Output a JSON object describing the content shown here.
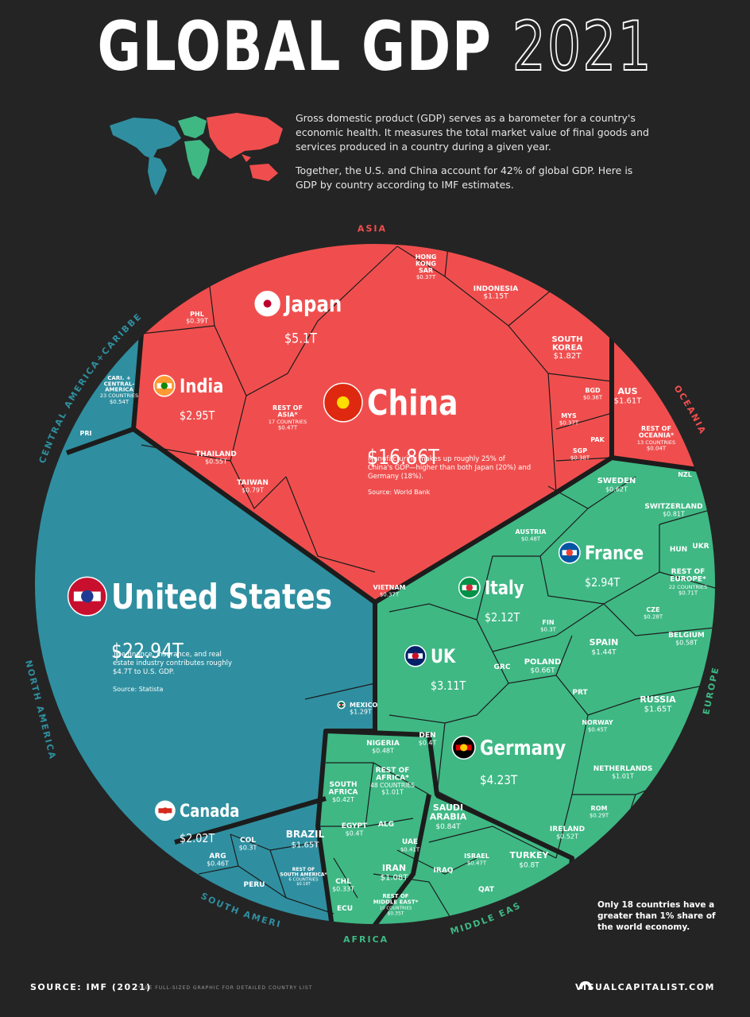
{
  "header": {
    "title_solid": "GLOBAL GDP",
    "title_outline": "2021",
    "intro_p1": "Gross domestic product (GDP) serves as a barometer for a country's economic health. It measures the total market value of final goods and services produced in a country during a given year.",
    "intro_p2": "Together, the U.S. and China account for 42% of global GDP. Here is GDP by country according to IMF estimates."
  },
  "colors": {
    "background": "#242424",
    "asia": "#f04e4e",
    "americas": "#2f8fa0",
    "europe": "#3fb884",
    "africa": "#3fb884",
    "middle_east": "#3fb884",
    "oceania": "#f04e4e",
    "border": "#1c1c1c"
  },
  "region_labels": {
    "asia": "ASIA",
    "oceania": "OCEANIA",
    "europe": "EUROPE",
    "middle_east": "MIDDLE EAST",
    "africa": "AFRICA",
    "south_america": "SOUTH AMERICA",
    "north_america": "NORTH AMERICA",
    "central_america": "CENTRAL AMERICA+CARIBBEAN"
  },
  "annotations": {
    "china": "Manufacturing makes up roughly 25% of China's GDP—higher than both Japan (20%) and Germany (18%).",
    "china_source": "Source: World Bank",
    "us": "The finance, insurance, and real estate industry contributes roughly $4.7T to U.S. GDP.",
    "us_source": "Source: Statista",
    "share_note": "Only 18 countries have a greater than 1% share of the world economy."
  },
  "footer": {
    "source": "SOURCE: IMF (2021)",
    "note": "*SEE FULL-SIZED GRAPHIC FOR DETAILED COUNTRY LIST",
    "brand": "VISUALCAPITALIST.COM"
  },
  "chart_data": {
    "type": "voronoi-treemap",
    "title": "GLOBAL GDP 2021",
    "unit": "USD trillions",
    "items": [
      {
        "label": "United States",
        "value": "$22.94T",
        "region": "North America",
        "flag": "us-flag-icon"
      },
      {
        "label": "Canada",
        "value": "$2.02T",
        "region": "North America",
        "flag": "canada-flag-icon"
      },
      {
        "label": "MEXICO",
        "value": "$1.29T",
        "region": "North America",
        "flag": "mexico-flag-icon"
      },
      {
        "label": "CARI. + CENTRAL- AMERICA",
        "sub": "23 COUNTRIES",
        "value": "$0.54T",
        "region": "Central America+Caribbean"
      },
      {
        "label": "PRI",
        "value": "",
        "region": "Central America+Caribbean"
      },
      {
        "label": "China",
        "value": "$16.86T",
        "region": "Asia",
        "flag": "china-flag-icon"
      },
      {
        "label": "Japan",
        "value": "$5.1T",
        "region": "Asia",
        "flag": "japan-flag-icon"
      },
      {
        "label": "India",
        "value": "$2.95T",
        "region": "Asia",
        "flag": "india-flag-icon"
      },
      {
        "label": "SOUTH KOREA",
        "value": "$1.82T",
        "region": "Asia"
      },
      {
        "label": "INDONESIA",
        "value": "$1.15T",
        "region": "Asia"
      },
      {
        "label": "TAIWAN",
        "value": "$0.79T",
        "region": "Asia"
      },
      {
        "label": "THAILAND",
        "value": "$0.55T",
        "region": "Asia"
      },
      {
        "label": "REST OF ASIA*",
        "sub": "17 COUNTRIES",
        "value": "$0.47T",
        "region": "Asia"
      },
      {
        "label": "PHL",
        "value": "$0.39T",
        "region": "Asia"
      },
      {
        "label": "SGP",
        "value": "$0.38T",
        "region": "Asia"
      },
      {
        "label": "MYS",
        "value": "$0.37T",
        "region": "Asia"
      },
      {
        "label": "HONG KONG SAR",
        "value": "$0.37T",
        "region": "Asia"
      },
      {
        "label": "VIETNAM",
        "value": "$0.37T",
        "region": "Asia"
      },
      {
        "label": "BGD",
        "value": "$0.36T",
        "region": "Asia"
      },
      {
        "label": "PAK",
        "value": "",
        "region": "Asia"
      },
      {
        "label": "AUS",
        "value": "$1.61T",
        "region": "Oceania"
      },
      {
        "label": "REST OF OCEANIA*",
        "sub": "13 COUNTRIES",
        "value": "$0.04T",
        "region": "Oceania"
      },
      {
        "label": "NZL",
        "value": "",
        "region": "Oceania"
      },
      {
        "label": "Germany",
        "value": "$4.23T",
        "region": "Europe",
        "flag": "germany-flag-icon"
      },
      {
        "label": "UK",
        "value": "$3.11T",
        "region": "Europe",
        "flag": "uk-flag-icon"
      },
      {
        "label": "France",
        "value": "$2.94T",
        "region": "Europe",
        "flag": "france-flag-icon"
      },
      {
        "label": "Italy",
        "value": "$2.12T",
        "region": "Europe",
        "flag": "italy-flag-icon"
      },
      {
        "label": "RUSSIA",
        "value": "$1.65T",
        "region": "Europe"
      },
      {
        "label": "SPAIN",
        "value": "$1.44T",
        "region": "Europe"
      },
      {
        "label": "NETHERLANDS",
        "value": "$1.01T",
        "region": "Europe"
      },
      {
        "label": "SWITZERLAND",
        "value": "$0.81T",
        "region": "Europe"
      },
      {
        "label": "REST OF EUROPE*",
        "sub": "22 COUNTRIES",
        "value": "$0.71T",
        "region": "Europe"
      },
      {
        "label": "POLAND",
        "value": "$0.66T",
        "region": "Europe"
      },
      {
        "label": "SWEDEN",
        "value": "$0.62T",
        "region": "Europe"
      },
      {
        "label": "BELGIUM",
        "value": "$0.58T",
        "region": "Europe"
      },
      {
        "label": "IRELAND",
        "value": "$0.52T",
        "region": "Europe"
      },
      {
        "label": "AUSTRIA",
        "value": "$0.48T",
        "region": "Europe"
      },
      {
        "label": "NORWAY",
        "value": "$0.45T",
        "region": "Europe"
      },
      {
        "label": "DEN",
        "value": "$0.4T",
        "region": "Europe"
      },
      {
        "label": "FIN",
        "value": "$0.3T",
        "region": "Europe"
      },
      {
        "label": "ROM",
        "value": "$0.29T",
        "region": "Europe"
      },
      {
        "label": "CZE",
        "value": "$0.28T",
        "region": "Europe"
      },
      {
        "label": "GRC",
        "value": "",
        "region": "Europe"
      },
      {
        "label": "PRT",
        "value": "",
        "region": "Europe"
      },
      {
        "label": "HUN",
        "value": "",
        "region": "Europe"
      },
      {
        "label": "UKR",
        "value": "",
        "region": "Europe"
      },
      {
        "label": "SAUDI ARABIA",
        "value": "$0.84T",
        "region": "Middle East"
      },
      {
        "label": "TURKEY",
        "value": "$0.8T",
        "region": "Middle East"
      },
      {
        "label": "ISRAEL",
        "value": "$0.47T",
        "region": "Middle East"
      },
      {
        "label": "UAE",
        "value": "$0.41T",
        "region": "Middle East"
      },
      {
        "label": "IRAN",
        "value": "$1.08T",
        "region": "Middle East"
      },
      {
        "label": "REST OF MIDDLE EAST*",
        "sub": "10 COUNTRIES",
        "value": "$0.35T",
        "region": "Middle East"
      },
      {
        "label": "IRAQ",
        "value": "",
        "region": "Middle East"
      },
      {
        "label": "QAT",
        "value": "",
        "region": "Middle East"
      },
      {
        "label": "REST OF AFRICA*",
        "sub": "48 COUNTRIES",
        "value": "$1.01T",
        "region": "Africa"
      },
      {
        "label": "NIGERIA",
        "value": "$0.48T",
        "region": "Africa"
      },
      {
        "label": "SOUTH AFRICA",
        "value": "$0.42T",
        "region": "Africa"
      },
      {
        "label": "EGYPT",
        "value": "$0.4T",
        "region": "Africa"
      },
      {
        "label": "ALG",
        "value": "",
        "region": "Africa"
      },
      {
        "label": "BRAZIL",
        "value": "$1.65T",
        "region": "South America"
      },
      {
        "label": "ARG",
        "value": "$0.46T",
        "region": "South America"
      },
      {
        "label": "CHL",
        "value": "$0.33T",
        "region": "South America"
      },
      {
        "label": "COL",
        "value": "$0.3T",
        "region": "South America"
      },
      {
        "label": "REST OF SOUTH AMERICA*",
        "sub": "6 COUNTRIES",
        "value": "$0.19T",
        "region": "South America"
      },
      {
        "label": "PERU",
        "value": "",
        "region": "South America"
      },
      {
        "label": "ECU",
        "value": "",
        "region": "South America"
      }
    ]
  }
}
